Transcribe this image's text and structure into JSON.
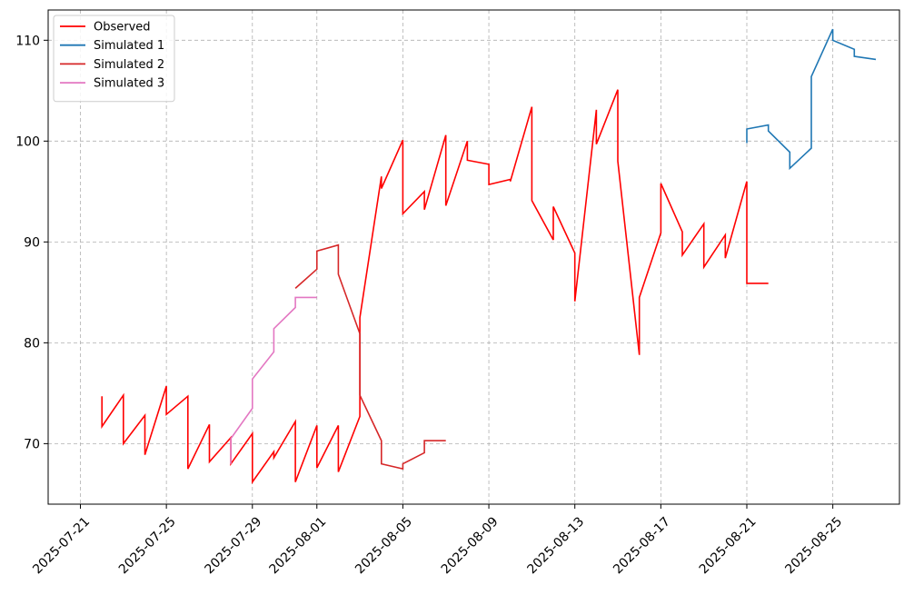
{
  "chart_data": {
    "type": "line",
    "style": "step",
    "x_axis_type": "date",
    "xlim": [
      "2025-07-20",
      "2025-08-27"
    ],
    "ylim": [
      64,
      113
    ],
    "x_ticks": [
      "2025-07-21",
      "2025-07-25",
      "2025-07-29",
      "2025-08-01",
      "2025-08-05",
      "2025-08-09",
      "2025-08-13",
      "2025-08-17",
      "2025-08-21",
      "2025-08-25"
    ],
    "y_ticks": [
      70,
      80,
      90,
      100,
      110
    ],
    "grid": true,
    "legend_position": "top-left",
    "title": "",
    "xlabel": "",
    "ylabel": "",
    "series": [
      {
        "name": "Observed",
        "color": "#ff0000",
        "points": [
          [
            "2025-07-22",
            74.7
          ],
          [
            "2025-07-22",
            71.7
          ],
          [
            "2025-07-23",
            74.8
          ],
          [
            "2025-07-23",
            70.0
          ],
          [
            "2025-07-24",
            72.8
          ],
          [
            "2025-07-24",
            68.9
          ],
          [
            "2025-07-25",
            75.7
          ],
          [
            "2025-07-25",
            72.9
          ],
          [
            "2025-07-26",
            74.7
          ],
          [
            "2025-07-26",
            67.5
          ],
          [
            "2025-07-27",
            71.9
          ],
          [
            "2025-07-27",
            68.2
          ],
          [
            "2025-07-28",
            70.6
          ],
          [
            "2025-07-28",
            68.0
          ],
          [
            "2025-07-29",
            71.0
          ],
          [
            "2025-07-29",
            66.2
          ],
          [
            "2025-07-30",
            69.2
          ],
          [
            "2025-07-30",
            68.6
          ],
          [
            "2025-07-31",
            72.2
          ],
          [
            "2025-07-31",
            66.2
          ],
          [
            "2025-08-01",
            71.8
          ],
          [
            "2025-08-01",
            67.6
          ],
          [
            "2025-08-02",
            71.8
          ],
          [
            "2025-08-02",
            67.2
          ],
          [
            "2025-08-03",
            72.7
          ],
          [
            "2025-08-03",
            82.5
          ],
          [
            "2025-08-04",
            96.5
          ],
          [
            "2025-08-04",
            95.3
          ],
          [
            "2025-08-05",
            100.1
          ],
          [
            "2025-08-05",
            92.8
          ],
          [
            "2025-08-06",
            95.0
          ],
          [
            "2025-08-06",
            93.2
          ],
          [
            "2025-08-07",
            100.6
          ],
          [
            "2025-08-07",
            93.6
          ],
          [
            "2025-08-08",
            100.0
          ],
          [
            "2025-08-08",
            98.1
          ],
          [
            "2025-08-09",
            97.7
          ],
          [
            "2025-08-09",
            95.7
          ],
          [
            "2025-08-10",
            96.2
          ],
          [
            "2025-08-10",
            96.0
          ],
          [
            "2025-08-11",
            103.4
          ],
          [
            "2025-08-11",
            94.1
          ],
          [
            "2025-08-12",
            90.2
          ],
          [
            "2025-08-12",
            93.5
          ],
          [
            "2025-08-13",
            88.9
          ],
          [
            "2025-08-13",
            84.1
          ],
          [
            "2025-08-14",
            103.1
          ],
          [
            "2025-08-14",
            99.7
          ],
          [
            "2025-08-15",
            105.1
          ],
          [
            "2025-08-15",
            98.0
          ],
          [
            "2025-08-16",
            78.8
          ],
          [
            "2025-08-16",
            84.5
          ],
          [
            "2025-08-17",
            90.9
          ],
          [
            "2025-08-17",
            95.8
          ],
          [
            "2025-08-18",
            91.0
          ],
          [
            "2025-08-18",
            88.7
          ],
          [
            "2025-08-19",
            91.8
          ],
          [
            "2025-08-19",
            87.5
          ],
          [
            "2025-08-20",
            90.7
          ],
          [
            "2025-08-20",
            88.4
          ],
          [
            "2025-08-21",
            96.0
          ],
          [
            "2025-08-21",
            85.9
          ],
          [
            "2025-08-22",
            85.9
          ]
        ]
      },
      {
        "name": "Simulated 1",
        "color": "#1f77b4",
        "points": [
          [
            "2025-08-21",
            99.8
          ],
          [
            "2025-08-21",
            101.2
          ],
          [
            "2025-08-22",
            101.6
          ],
          [
            "2025-08-22",
            101.0
          ],
          [
            "2025-08-23",
            98.9
          ],
          [
            "2025-08-23",
            97.3
          ],
          [
            "2025-08-24",
            99.3
          ],
          [
            "2025-08-24",
            106.4
          ],
          [
            "2025-08-25",
            111.1
          ],
          [
            "2025-08-25",
            110.0
          ],
          [
            "2025-08-26",
            109.1
          ],
          [
            "2025-08-26",
            108.4
          ],
          [
            "2025-08-27",
            108.1
          ]
        ]
      },
      {
        "name": "Simulated 2",
        "color": "#d62728",
        "points": [
          [
            "2025-07-31",
            85.4
          ],
          [
            "2025-08-01",
            87.3
          ],
          [
            "2025-08-01",
            89.1
          ],
          [
            "2025-08-02",
            89.7
          ],
          [
            "2025-08-02",
            86.8
          ],
          [
            "2025-08-03",
            80.9
          ],
          [
            "2025-08-03",
            74.8
          ],
          [
            "2025-08-04",
            70.3
          ],
          [
            "2025-08-04",
            68.0
          ],
          [
            "2025-08-05",
            67.5
          ],
          [
            "2025-08-05",
            68.0
          ],
          [
            "2025-08-06",
            69.1
          ],
          [
            "2025-08-06",
            70.3
          ],
          [
            "2025-08-07",
            70.3
          ]
        ]
      },
      {
        "name": "Simulated 3",
        "color": "#e377c2",
        "points": [
          [
            "2025-07-28",
            68.0
          ],
          [
            "2025-07-28",
            70.5
          ],
          [
            "2025-07-29",
            73.5
          ],
          [
            "2025-07-29",
            76.4
          ],
          [
            "2025-07-30",
            79.1
          ],
          [
            "2025-07-30",
            81.4
          ],
          [
            "2025-07-31",
            83.5
          ],
          [
            "2025-07-31",
            84.5
          ],
          [
            "2025-08-01",
            84.5
          ]
        ]
      }
    ]
  }
}
